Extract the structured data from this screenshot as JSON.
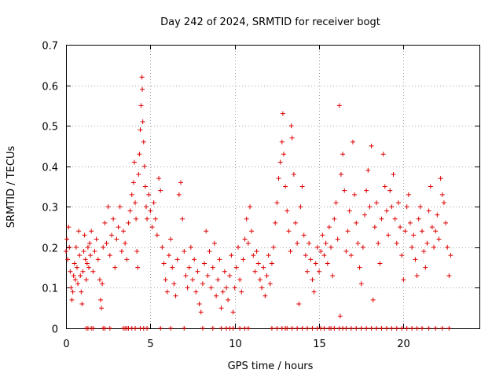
{
  "chart_data": {
    "type": "scatter",
    "title": "Day 242 of 2024, SRMTID for receiver bogt",
    "xlabel": "GPS time / hours",
    "ylabel": "SRMTID / TECUs",
    "xlim": [
      0,
      24.5
    ],
    "ylim": [
      0,
      0.7
    ],
    "xticks": [
      0,
      5,
      10,
      15,
      20
    ],
    "xtick_labels": [
      "0",
      "5",
      "10",
      "15",
      "20"
    ],
    "yticks": [
      0,
      0.1,
      0.2,
      0.3,
      0.4,
      0.5,
      0.6,
      0.7
    ],
    "ytick_labels": [
      "0",
      "0.1",
      "0.2",
      "0.3",
      "0.4",
      "0.5",
      "0.6",
      "0.7"
    ],
    "grid": true,
    "marker": "plus",
    "marker_color": "#e00000",
    "series": [
      {
        "name": "SRMTID",
        "points": [
          [
            0.0,
            0.19
          ],
          [
            0.05,
            0.22
          ],
          [
            0.1,
            0.17
          ],
          [
            0.15,
            0.25
          ],
          [
            0.2,
            0.2
          ],
          [
            0.25,
            0.14
          ],
          [
            0.3,
            0.1
          ],
          [
            0.35,
            0.07
          ],
          [
            0.4,
            0.09
          ],
          [
            0.45,
            0.13
          ],
          [
            0.5,
            0.16
          ],
          [
            0.55,
            0.12
          ],
          [
            0.6,
            0.2
          ],
          [
            0.65,
            0.15
          ],
          [
            0.7,
            0.11
          ],
          [
            0.75,
            0.24
          ],
          [
            0.8,
            0.18
          ],
          [
            0.85,
            0.13
          ],
          [
            0.9,
            0.09
          ],
          [
            0.95,
            0.06
          ],
          [
            1.0,
            0.14
          ],
          [
            1.05,
            0.19
          ],
          [
            1.1,
            0.23
          ],
          [
            1.15,
            0.17
          ],
          [
            1.2,
            0.12
          ],
          [
            1.25,
            0.16
          ],
          [
            1.3,
            0.2
          ],
          [
            1.35,
            0.15
          ],
          [
            1.4,
            0.21
          ],
          [
            1.45,
            0.18
          ],
          [
            1.5,
            0.24
          ],
          [
            1.6,
            0.14
          ],
          [
            1.7,
            0.19
          ],
          [
            1.8,
            0.22
          ],
          [
            1.9,
            0.17
          ],
          [
            2.0,
            0.12
          ],
          [
            2.05,
            0.07
          ],
          [
            2.1,
            0.05
          ],
          [
            2.15,
            0.11
          ],
          [
            2.2,
            0.2
          ],
          [
            2.3,
            0.26
          ],
          [
            2.4,
            0.21
          ],
          [
            2.5,
            0.3
          ],
          [
            2.6,
            0.18
          ],
          [
            2.7,
            0.23
          ],
          [
            2.8,
            0.27
          ],
          [
            2.9,
            0.15
          ],
          [
            3.0,
            0.22
          ],
          [
            3.1,
            0.25
          ],
          [
            3.2,
            0.3
          ],
          [
            3.3,
            0.19
          ],
          [
            3.4,
            0.24
          ],
          [
            3.5,
            0.21
          ],
          [
            3.6,
            0.17
          ],
          [
            3.7,
            0.26
          ],
          [
            3.8,
            0.29
          ],
          [
            3.9,
            0.33
          ],
          [
            4.0,
            0.36
          ],
          [
            4.05,
            0.41
          ],
          [
            4.1,
            0.31
          ],
          [
            4.15,
            0.27
          ],
          [
            4.2,
            0.19
          ],
          [
            4.25,
            0.15
          ],
          [
            4.3,
            0.38
          ],
          [
            4.35,
            0.43
          ],
          [
            4.4,
            0.49
          ],
          [
            4.45,
            0.55
          ],
          [
            4.5,
            0.62
          ],
          [
            4.52,
            0.59
          ],
          [
            4.55,
            0.51
          ],
          [
            4.6,
            0.46
          ],
          [
            4.65,
            0.4
          ],
          [
            4.7,
            0.35
          ],
          [
            4.75,
            0.3
          ],
          [
            4.8,
            0.27
          ],
          [
            4.9,
            0.33
          ],
          [
            5.0,
            0.29
          ],
          [
            5.1,
            0.25
          ],
          [
            5.2,
            0.31
          ],
          [
            5.3,
            0.27
          ],
          [
            5.4,
            0.23
          ],
          [
            5.5,
            0.37
          ],
          [
            5.6,
            0.34
          ],
          [
            5.7,
            0.2
          ],
          [
            5.8,
            0.16
          ],
          [
            5.9,
            0.12
          ],
          [
            6.0,
            0.09
          ],
          [
            6.1,
            0.18
          ],
          [
            6.2,
            0.22
          ],
          [
            6.3,
            0.15
          ],
          [
            6.4,
            0.11
          ],
          [
            6.5,
            0.08
          ],
          [
            6.6,
            0.17
          ],
          [
            6.7,
            0.33
          ],
          [
            6.8,
            0.36
          ],
          [
            6.9,
            0.27
          ],
          [
            7.0,
            0.19
          ],
          [
            7.1,
            0.13
          ],
          [
            7.2,
            0.1
          ],
          [
            7.3,
            0.15
          ],
          [
            7.4,
            0.2
          ],
          [
            7.5,
            0.12
          ],
          [
            7.6,
            0.17
          ],
          [
            7.7,
            0.09
          ],
          [
            7.8,
            0.14
          ],
          [
            7.9,
            0.06
          ],
          [
            8.0,
            0.04
          ],
          [
            8.1,
            0.11
          ],
          [
            8.2,
            0.16
          ],
          [
            8.3,
            0.24
          ],
          [
            8.4,
            0.13
          ],
          [
            8.5,
            0.19
          ],
          [
            8.6,
            0.1
          ],
          [
            8.7,
            0.15
          ],
          [
            8.8,
            0.21
          ],
          [
            8.9,
            0.08
          ],
          [
            9.0,
            0.12
          ],
          [
            9.1,
            0.17
          ],
          [
            9.2,
            0.05
          ],
          [
            9.3,
            0.09
          ],
          [
            9.4,
            0.14
          ],
          [
            9.5,
            0.1
          ],
          [
            9.6,
            0.07
          ],
          [
            9.7,
            0.13
          ],
          [
            9.8,
            0.18
          ],
          [
            9.9,
            0.04
          ],
          [
            10.0,
            0.1
          ],
          [
            10.1,
            0.15
          ],
          [
            10.2,
            0.2
          ],
          [
            10.3,
            0.12
          ],
          [
            10.4,
            0.09
          ],
          [
            10.5,
            0.17
          ],
          [
            10.6,
            0.22
          ],
          [
            10.7,
            0.27
          ],
          [
            10.8,
            0.21
          ],
          [
            10.9,
            0.3
          ],
          [
            11.0,
            0.24
          ],
          [
            11.1,
            0.18
          ],
          [
            11.2,
            0.14
          ],
          [
            11.3,
            0.19
          ],
          [
            11.4,
            0.16
          ],
          [
            11.5,
            0.12
          ],
          [
            11.6,
            0.1
          ],
          [
            11.7,
            0.15
          ],
          [
            11.8,
            0.08
          ],
          [
            11.9,
            0.13
          ],
          [
            12.0,
            0.18
          ],
          [
            12.1,
            0.11
          ],
          [
            12.2,
            0.16
          ],
          [
            12.3,
            0.2
          ],
          [
            12.4,
            0.26
          ],
          [
            12.5,
            0.31
          ],
          [
            12.6,
            0.37
          ],
          [
            12.7,
            0.41
          ],
          [
            12.8,
            0.46
          ],
          [
            12.85,
            0.53
          ],
          [
            12.9,
            0.43
          ],
          [
            13.0,
            0.35
          ],
          [
            13.1,
            0.29
          ],
          [
            13.2,
            0.24
          ],
          [
            13.3,
            0.19
          ],
          [
            13.35,
            0.5
          ],
          [
            13.4,
            0.47
          ],
          [
            13.5,
            0.38
          ],
          [
            13.6,
            0.26
          ],
          [
            13.7,
            0.21
          ],
          [
            13.8,
            0.06
          ],
          [
            13.9,
            0.3
          ],
          [
            14.0,
            0.35
          ],
          [
            14.1,
            0.23
          ],
          [
            14.2,
            0.18
          ],
          [
            14.3,
            0.14
          ],
          [
            14.4,
            0.21
          ],
          [
            14.5,
            0.17
          ],
          [
            14.6,
            0.12
          ],
          [
            14.7,
            0.09
          ],
          [
            14.8,
            0.16
          ],
          [
            14.9,
            0.2
          ],
          [
            15.0,
            0.14
          ],
          [
            15.1,
            0.19
          ],
          [
            15.2,
            0.23
          ],
          [
            15.3,
            0.18
          ],
          [
            15.4,
            0.21
          ],
          [
            15.5,
            0.16
          ],
          [
            15.6,
            0.25
          ],
          [
            15.7,
            0.2
          ],
          [
            15.8,
            0.13
          ],
          [
            15.9,
            0.27
          ],
          [
            16.0,
            0.31
          ],
          [
            16.1,
            0.22
          ],
          [
            16.2,
            0.55
          ],
          [
            16.25,
            0.03
          ],
          [
            16.3,
            0.38
          ],
          [
            16.4,
            0.43
          ],
          [
            16.5,
            0.34
          ],
          [
            16.6,
            0.19
          ],
          [
            16.7,
            0.24
          ],
          [
            16.8,
            0.29
          ],
          [
            16.9,
            0.18
          ],
          [
            17.0,
            0.46
          ],
          [
            17.1,
            0.33
          ],
          [
            17.2,
            0.26
          ],
          [
            17.3,
            0.21
          ],
          [
            17.4,
            0.15
          ],
          [
            17.5,
            0.11
          ],
          [
            17.6,
            0.2
          ],
          [
            17.7,
            0.28
          ],
          [
            17.8,
            0.34
          ],
          [
            17.9,
            0.39
          ],
          [
            18.0,
            0.3
          ],
          [
            18.1,
            0.45
          ],
          [
            18.2,
            0.07
          ],
          [
            18.3,
            0.25
          ],
          [
            18.4,
            0.31
          ],
          [
            18.5,
            0.21
          ],
          [
            18.6,
            0.16
          ],
          [
            18.7,
            0.27
          ],
          [
            18.8,
            0.43
          ],
          [
            18.9,
            0.35
          ],
          [
            19.0,
            0.29
          ],
          [
            19.1,
            0.23
          ],
          [
            19.2,
            0.34
          ],
          [
            19.3,
            0.3
          ],
          [
            19.4,
            0.38
          ],
          [
            19.5,
            0.27
          ],
          [
            19.6,
            0.21
          ],
          [
            19.7,
            0.31
          ],
          [
            19.8,
            0.25
          ],
          [
            19.9,
            0.18
          ],
          [
            20.0,
            0.12
          ],
          [
            20.1,
            0.24
          ],
          [
            20.2,
            0.3
          ],
          [
            20.3,
            0.33
          ],
          [
            20.4,
            0.26
          ],
          [
            20.5,
            0.2
          ],
          [
            20.6,
            0.23
          ],
          [
            20.7,
            0.17
          ],
          [
            20.8,
            0.13
          ],
          [
            20.9,
            0.27
          ],
          [
            21.0,
            0.3
          ],
          [
            21.1,
            0.24
          ],
          [
            21.2,
            0.19
          ],
          [
            21.3,
            0.15
          ],
          [
            21.4,
            0.21
          ],
          [
            21.5,
            0.29
          ],
          [
            21.6,
            0.35
          ],
          [
            21.7,
            0.25
          ],
          [
            21.8,
            0.2
          ],
          [
            21.9,
            0.24
          ],
          [
            22.0,
            0.28
          ],
          [
            22.1,
            0.22
          ],
          [
            22.2,
            0.37
          ],
          [
            22.3,
            0.33
          ],
          [
            22.4,
            0.31
          ],
          [
            22.5,
            0.26
          ],
          [
            22.6,
            0.2
          ],
          [
            22.7,
            0.13
          ],
          [
            22.8,
            0.18
          ]
        ],
        "zeros": [
          1.2,
          1.3,
          1.5,
          1.6,
          2.2,
          2.3,
          2.6,
          3.4,
          3.5,
          3.6,
          3.7,
          3.9,
          4.1,
          4.4,
          4.6,
          4.8,
          5.6,
          6.2,
          7.0,
          8.1,
          8.7,
          9.2,
          9.5,
          9.7,
          9.9,
          10.3,
          10.6,
          10.8,
          12.2,
          12.5,
          12.8,
          13.0,
          13.1,
          13.4,
          13.7,
          14.0,
          14.3,
          14.6,
          14.9,
          15.1,
          15.3,
          15.6,
          15.7,
          15.9,
          16.2,
          16.4,
          16.6,
          16.9,
          17.2,
          17.5,
          17.8,
          18.1,
          18.4,
          18.7,
          19.0,
          19.3,
          19.6,
          19.9,
          20.2,
          20.5,
          20.8,
          21.1,
          21.5,
          21.9,
          22.3,
          22.7
        ]
      }
    ]
  }
}
